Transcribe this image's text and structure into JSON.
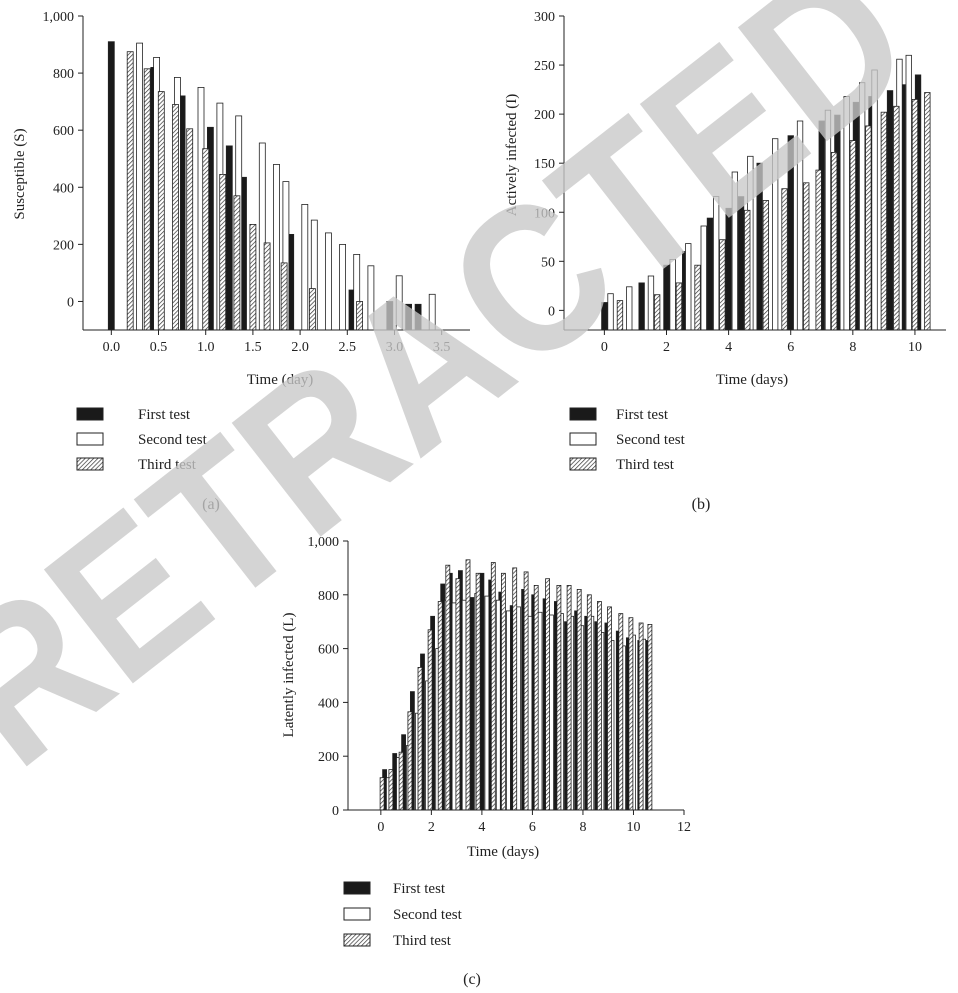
{
  "colors": {
    "first": "#1a1a1a",
    "second": "#ffffff",
    "third": "hatched",
    "watermark": "#c9c9c9"
  },
  "watermark": {
    "text": "RETRACTED"
  },
  "legend": {
    "first": "First test",
    "second": "Second test",
    "third": "Third test"
  },
  "chart_data": [
    {
      "panel": "(a)",
      "type": "bar",
      "xlabel": "Time (day)",
      "ylabel": "Susceptible (S)",
      "xlim": [
        -0.3,
        3.8
      ],
      "ylim": [
        -100,
        1000
      ],
      "xticks": [
        "0.0",
        "0.5",
        "1.0",
        "1.5",
        "2.0",
        "2.5",
        "3.0",
        "3.5"
      ],
      "yticks": [
        "0",
        "200",
        "400",
        "600",
        "800",
        "1,000"
      ],
      "series": [
        {
          "name": "First test",
          "x": [
            0.0,
            0.45,
            0.75,
            1.05,
            1.25,
            1.4,
            1.9,
            2.55,
            2.95,
            3.15,
            3.25
          ],
          "values": [
            910,
            820,
            720,
            610,
            545,
            435,
            235,
            40,
            0,
            -10,
            -10
          ]
        },
        {
          "name": "Second test",
          "x": [
            0.3,
            0.48,
            0.7,
            0.95,
            1.15,
            1.35,
            1.6,
            1.75,
            1.85,
            2.05,
            2.15,
            2.3,
            2.45,
            2.6,
            2.75,
            3.05,
            3.4
          ],
          "values": [
            905,
            855,
            785,
            750,
            695,
            650,
            555,
            480,
            420,
            340,
            285,
            240,
            200,
            165,
            125,
            90,
            25
          ]
        },
        {
          "name": "Third test",
          "x": [
            0.2,
            0.38,
            0.53,
            0.68,
            0.83,
            1.0,
            1.18,
            1.33,
            1.5,
            1.65,
            1.83,
            2.13,
            2.63
          ],
          "values": [
            875,
            815,
            735,
            690,
            605,
            535,
            445,
            370,
            270,
            205,
            135,
            45,
            0
          ]
        }
      ]
    },
    {
      "panel": "(b)",
      "type": "bar",
      "xlabel": "Time (days)",
      "ylabel": "Actively infected (I)",
      "xlim": [
        -1.3,
        11.0
      ],
      "ylim": [
        -20,
        300
      ],
      "xticks": [
        "0",
        "2",
        "4",
        "6",
        "8",
        "10"
      ],
      "yticks": [
        "0",
        "50",
        "100",
        "150",
        "200",
        "250",
        "300"
      ],
      "series": [
        {
          "name": "First test",
          "x": [
            0.0,
            1.2,
            2.0,
            2.6,
            3.4,
            4.0,
            4.4,
            5.0,
            6.0,
            7.0,
            7.5,
            8.1,
            8.6,
            9.2,
            9.6,
            10.1
          ],
          "values": [
            8,
            28,
            46,
            60,
            94,
            104,
            116,
            150,
            178,
            193,
            199,
            212,
            218,
            224,
            230,
            240
          ]
        },
        {
          "name": "Second test",
          "x": [
            0.2,
            0.8,
            1.5,
            2.2,
            2.7,
            3.2,
            3.6,
            4.2,
            4.7,
            5.5,
            6.3,
            7.2,
            7.8,
            8.3,
            8.7,
            9.5,
            9.8
          ],
          "values": [
            17,
            24,
            35,
            52,
            68,
            86,
            116,
            141,
            157,
            175,
            193,
            204,
            218,
            232,
            245,
            256,
            260
          ]
        },
        {
          "name": "Third test",
          "x": [
            0.5,
            1.7,
            2.4,
            3.0,
            3.8,
            4.6,
            5.2,
            5.8,
            6.5,
            6.9,
            7.4,
            8.0,
            8.5,
            9.0,
            9.4,
            10.0,
            10.4
          ],
          "values": [
            10,
            16,
            28,
            46,
            72,
            102,
            112,
            124,
            130,
            143,
            161,
            173,
            188,
            202,
            208,
            215,
            222
          ]
        }
      ]
    },
    {
      "panel": "(c)",
      "type": "bar",
      "xlabel": "Time (days)",
      "ylabel": "Latently infected (L)",
      "xlim": [
        -1.3,
        12.0
      ],
      "ylim": [
        0,
        1000
      ],
      "xticks": [
        "0",
        "2",
        "4",
        "6",
        "8",
        "10",
        "12"
      ],
      "yticks": [
        "0",
        "200",
        "400",
        "600",
        "800",
        "1,000"
      ],
      "series": [
        {
          "name": "First test",
          "x": [
            0.15,
            0.55,
            0.9,
            1.25,
            1.65,
            2.05,
            2.45,
            2.75,
            3.15,
            3.6,
            4.0,
            4.35,
            4.75,
            5.2,
            5.65,
            6.05,
            6.5,
            6.95,
            7.35,
            7.75,
            8.15,
            8.55,
            8.95,
            9.4,
            9.8,
            10.25,
            10.5
          ],
          "values": [
            150,
            210,
            280,
            440,
            580,
            720,
            840,
            880,
            890,
            790,
            880,
            855,
            810,
            760,
            820,
            800,
            785,
            775,
            700,
            740,
            720,
            700,
            695,
            665,
            640,
            630,
            630
          ]
        },
        {
          "name": "Second test",
          "x": [
            0.3,
            0.7,
            1.1,
            1.45,
            1.85,
            2.25,
            2.6,
            2.9,
            3.3,
            3.8,
            4.2,
            4.65,
            5.05,
            5.45,
            5.9,
            6.3,
            6.75,
            7.15,
            7.55,
            7.95,
            8.35,
            8.75,
            9.15,
            9.6,
            10.0,
            10.4
          ],
          "values": [
            120,
            195,
            240,
            360,
            480,
            600,
            780,
            770,
            780,
            805,
            795,
            780,
            740,
            755,
            720,
            735,
            725,
            730,
            720,
            685,
            720,
            660,
            630,
            610,
            650,
            635
          ]
        },
        {
          "name": "Third test",
          "x": [
            0.05,
            0.4,
            0.8,
            1.15,
            1.55,
            1.95,
            2.35,
            2.65,
            3.05,
            3.45,
            3.85,
            4.45,
            4.85,
            5.3,
            5.75,
            6.15,
            6.6,
            7.05,
            7.45,
            7.85,
            8.25,
            8.65,
            9.05,
            9.5,
            9.9,
            10.3,
            10.65
          ],
          "values": [
            120,
            150,
            215,
            365,
            530,
            670,
            775,
            910,
            860,
            930,
            880,
            920,
            880,
            900,
            885,
            835,
            860,
            835,
            835,
            820,
            800,
            775,
            755,
            730,
            715,
            695,
            690
          ]
        }
      ]
    }
  ],
  "panel_labels": [
    "(a)",
    "(b)",
    "(c)"
  ]
}
